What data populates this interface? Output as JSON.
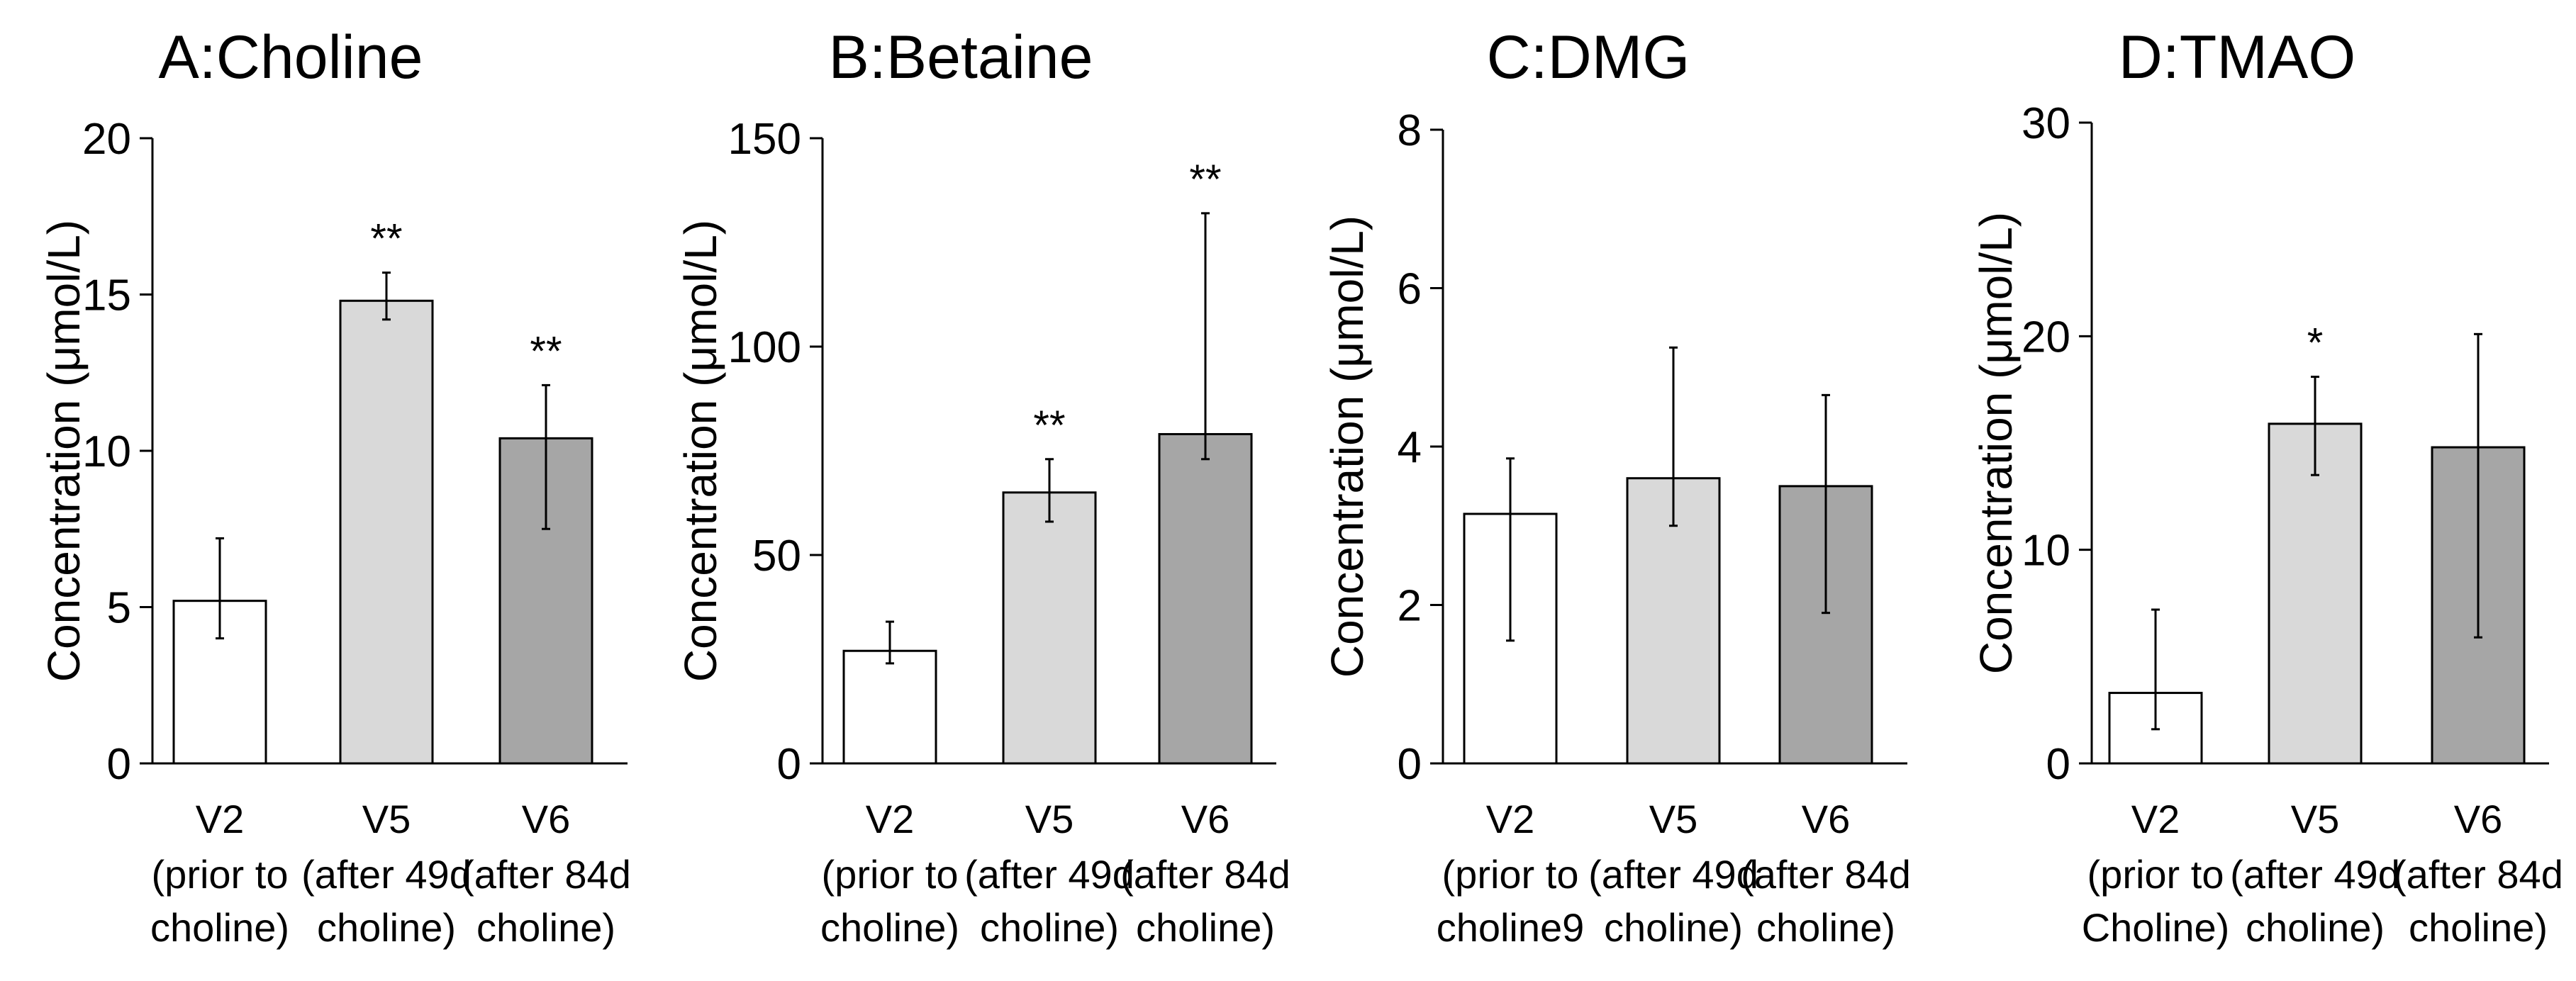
{
  "chart_data": [
    {
      "type": "bar",
      "title": "A:Choline",
      "ylabel": "Concentration (μmol/L)",
      "ylim": [
        0,
        20
      ],
      "yticks": [
        0,
        5,
        10,
        15,
        20
      ],
      "categories": [
        [
          "V2",
          "(prior to",
          "choline)"
        ],
        [
          "V5",
          "(after 49d",
          "choline)"
        ],
        [
          "V6",
          "(after 84d",
          "choline)"
        ]
      ],
      "values": [
        5.2,
        14.8,
        10.4
      ],
      "error_low": [
        4.0,
        14.2,
        7.5
      ],
      "error_high": [
        7.2,
        15.7,
        12.1
      ],
      "significance": [
        "",
        "**",
        "**"
      ],
      "bar_colors": [
        "#ffffff",
        "#d9d9d9",
        "#a6a6a6"
      ]
    },
    {
      "type": "bar",
      "title": "B:Betaine",
      "ylabel": "Concentration (μmol/L)",
      "ylim": [
        0,
        150
      ],
      "yticks": [
        0,
        50,
        100,
        150
      ],
      "categories": [
        [
          "V2",
          "(prior to",
          "choline)"
        ],
        [
          "V5",
          "(after 49d",
          "choline)"
        ],
        [
          "V6",
          "(after 84d",
          "choline)"
        ]
      ],
      "values": [
        27,
        65,
        79
      ],
      "error_low": [
        24,
        58,
        73
      ],
      "error_high": [
        34,
        73,
        132
      ],
      "significance": [
        "",
        "**",
        "**"
      ],
      "bar_colors": [
        "#ffffff",
        "#d9d9d9",
        "#a6a6a6"
      ]
    },
    {
      "type": "bar",
      "title": "C:DMG",
      "ylabel": "Concentration (μmol/L)",
      "ylim": [
        0,
        8
      ],
      "yticks": [
        0,
        2,
        4,
        6,
        8
      ],
      "categories": [
        [
          "V2",
          "(prior to",
          "choline9"
        ],
        [
          "V5",
          "(after 49d",
          "choline)"
        ],
        [
          "V6",
          "(after 84d",
          "choline)"
        ]
      ],
      "values": [
        3.15,
        3.6,
        3.5
      ],
      "error_low": [
        1.55,
        3.0,
        1.9
      ],
      "error_high": [
        3.85,
        5.25,
        4.65
      ],
      "significance": [
        "",
        "",
        ""
      ],
      "bar_colors": [
        "#ffffff",
        "#d9d9d9",
        "#a6a6a6"
      ]
    },
    {
      "type": "bar",
      "title": "D:TMAO",
      "ylabel": "Concentration (μmol/L)",
      "ylim": [
        0,
        30
      ],
      "yticks": [
        0,
        10,
        20,
        30
      ],
      "categories": [
        [
          "V2",
          "(prior to",
          "Choline)"
        ],
        [
          "V5",
          "(after 49d",
          "choline)"
        ],
        [
          "V6",
          "(after 84d",
          "choline)"
        ]
      ],
      "values": [
        3.3,
        15.9,
        14.8
      ],
      "error_low": [
        1.6,
        13.5,
        5.9
      ],
      "error_high": [
        7.2,
        18.1,
        20.1
      ],
      "significance": [
        "",
        "*",
        ""
      ],
      "bar_colors": [
        "#ffffff",
        "#d9d9d9",
        "#a6a6a6"
      ]
    }
  ]
}
